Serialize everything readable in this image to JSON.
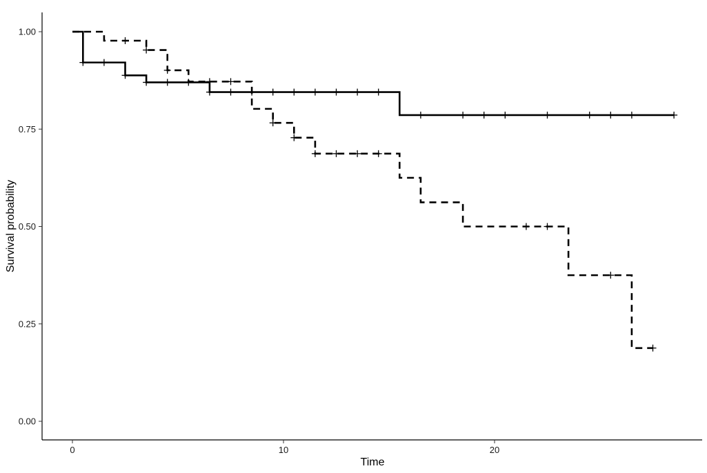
{
  "chart_data": {
    "type": "line",
    "subtype": "kaplan-meier step curves",
    "xlabel": "Time",
    "ylabel": "Survival probability",
    "xlim": [
      -1.5,
      30
    ],
    "ylim": [
      -0.05,
      1.05
    ],
    "x_ticks": [
      0,
      10,
      20
    ],
    "x_tick_labels": [
      "0",
      "10",
      "20"
    ],
    "y_ticks": [
      0,
      0.25,
      0.5,
      0.75,
      1.0
    ],
    "y_tick_labels": [
      "0.00",
      "0.25",
      "0.50",
      "0.75",
      "1.00"
    ],
    "grid": false,
    "legend": "none",
    "series": [
      {
        "line_style": "solid",
        "color": "#000000",
        "steps": [
          [
            0,
            1.0
          ],
          [
            0.5,
            0.921
          ],
          [
            2.5,
            0.888
          ],
          [
            3.5,
            0.87
          ],
          [
            6.5,
            0.845
          ],
          [
            15.5,
            0.786
          ]
        ],
        "end_x": 28.5,
        "censor_x": [
          0.5,
          1.5,
          2.5,
          3.5,
          4.5,
          5.5,
          6.5,
          7.5,
          8.5,
          9.5,
          10.5,
          11.5,
          12.5,
          13.5,
          14.5,
          16.5,
          18.5,
          19.5,
          20.5,
          22.5,
          24.5,
          25.5,
          26.5,
          28.5
        ]
      },
      {
        "line_style": "dashed",
        "color": "#000000",
        "steps": [
          [
            0,
            1.0
          ],
          [
            1.5,
            0.977
          ],
          [
            3.5,
            0.953
          ],
          [
            4.5,
            0.901
          ],
          [
            5.5,
            0.872
          ],
          [
            8.5,
            0.802
          ],
          [
            9.5,
            0.766
          ],
          [
            10.5,
            0.728
          ],
          [
            11.5,
            0.687
          ],
          [
            15.5,
            0.625
          ],
          [
            16.5,
            0.562
          ],
          [
            18.5,
            0.5
          ],
          [
            23.5,
            0.375
          ],
          [
            26.5,
            0.188
          ]
        ],
        "end_x": 27.5,
        "censor_x": [
          2.5,
          3.5,
          4.5,
          6.5,
          7.5,
          9.5,
          10.5,
          11.5,
          12.5,
          13.5,
          14.5,
          21.5,
          22.5,
          25.5,
          27.5
        ]
      }
    ]
  }
}
